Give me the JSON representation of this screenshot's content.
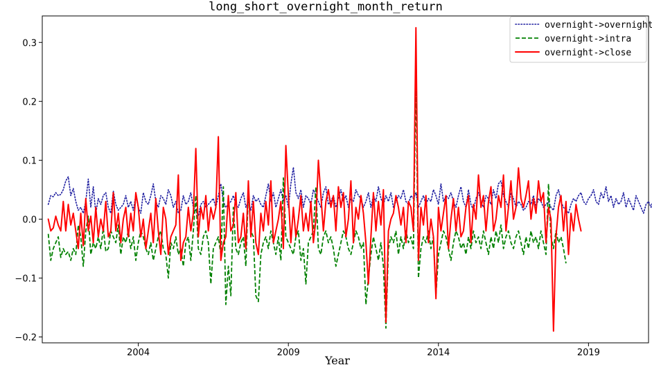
{
  "chart_data": {
    "type": "line",
    "title": "long_short_overnight_month_return",
    "xlabel": "Year",
    "ylabel": "",
    "x_ticks": [
      "2004",
      "2009",
      "2014",
      "2019"
    ],
    "x_tick_values": [
      2004,
      2009,
      2014,
      2019
    ],
    "y_ticks": [
      "−0.2",
      "−0.1",
      "0.0",
      "0.1",
      "0.2",
      "0.3"
    ],
    "y_tick_values": [
      -0.2,
      -0.1,
      0.0,
      0.1,
      0.2,
      0.3
    ],
    "xlim": [
      2000.8,
      2021.0
    ],
    "ylim": [
      -0.21,
      0.345
    ],
    "legend_position": "top-right",
    "grid": false,
    "x_start": 2001.0,
    "x_step": 0.08333333,
    "series": [
      {
        "name": "overnight->overnight",
        "color": "#1f1fa0",
        "style": "dotted",
        "values": [
          0.025,
          0.04,
          0.038,
          0.045,
          0.04,
          0.042,
          0.05,
          0.065,
          0.072,
          0.04,
          0.052,
          0.03,
          0.015,
          0.02,
          0.01,
          0.03,
          0.068,
          0.02,
          0.055,
          0.01,
          0.035,
          0.025,
          0.04,
          0.045,
          0.02,
          0.01,
          0.048,
          0.025,
          0.015,
          0.02,
          0.025,
          0.04,
          0.02,
          0.03,
          0.015,
          0.04,
          0.02,
          0.01,
          0.045,
          0.03,
          0.025,
          0.04,
          0.06,
          0.03,
          0.02,
          0.04,
          0.035,
          0.025,
          0.05,
          0.04,
          0.02,
          0.03,
          0.01,
          0.015,
          0.04,
          0.025,
          0.03,
          0.045,
          0.02,
          0.015,
          0.005,
          0.025,
          0.03,
          0.02,
          0.025,
          0.03,
          0.035,
          0.02,
          0.04,
          0.06,
          0.03,
          0.02,
          0.025,
          0.03,
          0.04,
          0.025,
          0.02,
          0.035,
          0.045,
          0.02,
          0.03,
          0.015,
          0.04,
          0.03,
          0.035,
          0.025,
          0.02,
          0.04,
          0.06,
          0.03,
          0.045,
          0.02,
          0.035,
          0.05,
          0.03,
          0.04,
          0.02,
          0.06,
          0.088,
          0.045,
          0.035,
          0.05,
          0.02,
          0.04,
          0.035,
          0.025,
          0.05,
          0.04,
          0.03,
          0.02,
          0.045,
          0.055,
          0.025,
          0.03,
          0.04,
          0.02,
          0.035,
          0.05,
          0.03,
          0.04,
          0.02,
          0.035,
          0.03,
          0.05,
          0.04,
          0.035,
          0.02,
          0.03,
          0.045,
          0.02,
          0.04,
          0.03,
          0.055,
          0.035,
          0.025,
          0.04,
          0.03,
          0.045,
          0.02,
          0.03,
          0.04,
          0.035,
          0.05,
          0.03,
          0.025,
          0.04,
          0.035,
          0.045,
          0.02,
          0.03,
          0.04,
          0.025,
          0.035,
          0.03,
          0.05,
          0.04,
          0.025,
          0.06,
          0.03,
          0.04,
          0.035,
          0.045,
          0.03,
          0.02,
          0.04,
          0.055,
          0.03,
          0.02,
          0.05,
          0.025,
          0.015,
          0.035,
          0.045,
          0.03,
          0.02,
          0.04,
          0.035,
          0.025,
          0.05,
          0.035,
          0.06,
          0.065,
          0.04,
          0.03,
          0.02,
          0.045,
          0.035,
          0.02,
          0.03,
          0.025,
          0.015,
          0.02,
          0.03,
          0.025,
          0.04,
          0.02,
          0.035,
          0.03,
          0.02,
          0.025,
          0.03,
          0.02,
          0.015,
          0.04,
          0.05,
          0.03,
          0.02,
          0.015,
          0.01,
          0.025,
          0.035,
          0.03,
          0.04,
          0.045,
          0.03,
          0.025,
          0.035,
          0.04,
          0.05,
          0.03,
          0.025,
          0.045,
          0.035,
          0.055,
          0.03,
          0.04,
          0.02,
          0.035,
          0.025,
          0.03,
          0.045,
          0.02,
          0.035,
          0.025,
          0.015,
          0.04,
          0.03,
          0.02,
          0.01,
          0.025,
          0.03,
          0.02,
          0.035,
          0.045,
          0.055
        ]
      },
      {
        "name": "overnight->intra",
        "color": "#008000",
        "style": "dashed",
        "values": [
          -0.025,
          -0.07,
          -0.05,
          -0.04,
          -0.03,
          -0.065,
          -0.05,
          -0.06,
          -0.055,
          -0.07,
          -0.05,
          -0.06,
          -0.01,
          -0.03,
          -0.08,
          -0.02,
          0.005,
          -0.06,
          -0.04,
          -0.05,
          -0.03,
          -0.05,
          -0.015,
          -0.055,
          -0.05,
          -0.02,
          -0.03,
          -0.04,
          -0.01,
          -0.06,
          -0.03,
          -0.04,
          -0.02,
          -0.05,
          -0.03,
          -0.07,
          -0.04,
          -0.02,
          -0.03,
          -0.05,
          -0.06,
          -0.04,
          -0.07,
          -0.05,
          -0.03,
          -0.02,
          -0.05,
          -0.06,
          -0.1,
          -0.04,
          -0.05,
          -0.03,
          -0.06,
          -0.05,
          -0.08,
          -0.04,
          -0.03,
          -0.07,
          -0.02,
          0.04,
          -0.05,
          -0.06,
          -0.03,
          -0.02,
          -0.04,
          -0.11,
          -0.05,
          -0.04,
          -0.03,
          -0.06,
          0.055,
          -0.145,
          -0.08,
          -0.13,
          0.02,
          -0.05,
          -0.06,
          -0.04,
          -0.03,
          -0.08,
          0.05,
          -0.02,
          -0.03,
          -0.13,
          -0.14,
          -0.06,
          -0.04,
          -0.03,
          -0.05,
          -0.02,
          -0.04,
          -0.06,
          -0.03,
          -0.07,
          0.07,
          -0.03,
          -0.04,
          -0.05,
          -0.06,
          -0.03,
          -0.02,
          -0.07,
          -0.05,
          -0.11,
          -0.04,
          -0.03,
          -0.02,
          0.055,
          -0.05,
          -0.06,
          -0.03,
          -0.02,
          -0.04,
          -0.03,
          -0.05,
          -0.08,
          -0.06,
          -0.04,
          -0.02,
          -0.03,
          -0.05,
          -0.06,
          -0.04,
          -0.02,
          -0.03,
          -0.05,
          -0.04,
          -0.145,
          -0.1,
          -0.06,
          -0.03,
          -0.05,
          -0.07,
          -0.04,
          -0.08,
          -0.185,
          -0.05,
          -0.03,
          -0.04,
          -0.02,
          -0.06,
          -0.03,
          -0.05,
          -0.02,
          -0.04,
          -0.03,
          -0.05,
          0.245,
          -0.1,
          -0.05,
          -0.03,
          -0.04,
          -0.02,
          -0.05,
          -0.03,
          -0.13,
          -0.06,
          -0.04,
          -0.02,
          -0.03,
          -0.05,
          -0.07,
          -0.04,
          -0.02,
          -0.03,
          -0.05,
          -0.04,
          -0.06,
          -0.03,
          -0.05,
          -0.02,
          -0.04,
          -0.03,
          -0.05,
          -0.02,
          -0.04,
          -0.06,
          -0.03,
          -0.05,
          -0.02,
          -0.04,
          -0.01,
          -0.05,
          -0.03,
          -0.02,
          -0.04,
          -0.05,
          -0.03,
          -0.02,
          -0.04,
          -0.06,
          -0.03,
          -0.05,
          -0.02,
          -0.04,
          -0.03,
          -0.05,
          -0.02,
          -0.04,
          -0.06,
          0.06,
          -0.03,
          -0.05,
          -0.02,
          -0.04,
          -0.03,
          -0.05,
          -0.075
        ]
      },
      {
        "name": "overnight->close",
        "color": "#ff0000",
        "style": "solid",
        "values": [
          0.0,
          -0.02,
          -0.015,
          0.005,
          -0.01,
          -0.02,
          0.03,
          -0.02,
          0.025,
          -0.01,
          0.01,
          -0.02,
          -0.05,
          0.01,
          -0.045,
          0.035,
          -0.02,
          0.005,
          -0.04,
          0.02,
          -0.03,
          0.0,
          -0.02,
          0.03,
          -0.03,
          -0.02,
          0.045,
          -0.02,
          0.01,
          -0.04,
          0.0,
          0.02,
          -0.03,
          0.01,
          -0.02,
          0.045,
          0.02,
          -0.03,
          0.0,
          -0.05,
          -0.02,
          0.01,
          -0.04,
          0.035,
          -0.02,
          -0.06,
          0.02,
          0.0,
          -0.06,
          -0.03,
          -0.02,
          -0.01,
          0.075,
          -0.07,
          -0.04,
          -0.03,
          0.02,
          -0.02,
          0.01,
          0.12,
          -0.03,
          0.02,
          0.0,
          0.04,
          -0.02,
          0.02,
          0.0,
          0.02,
          0.14,
          -0.07,
          -0.04,
          -0.03,
          0.04,
          -0.02,
          -0.01,
          0.045,
          -0.04,
          -0.03,
          0.01,
          -0.05,
          0.065,
          -0.03,
          0.03,
          -0.04,
          -0.06,
          0.01,
          -0.02,
          0.03,
          -0.01,
          0.065,
          -0.04,
          -0.02,
          0.0,
          0.03,
          -0.05,
          0.125,
          0.04,
          -0.04,
          0.02,
          -0.03,
          0.0,
          0.04,
          -0.02,
          0.01,
          -0.02,
          0.03,
          -0.04,
          0.0,
          0.1,
          0.04,
          -0.02,
          0.03,
          0.05,
          0.02,
          0.04,
          -0.02,
          0.055,
          0.02,
          0.045,
          -0.03,
          0.0,
          0.065,
          -0.04,
          0.02,
          0.0,
          0.04,
          0.01,
          -0.04,
          -0.11,
          -0.03,
          0.045,
          -0.02,
          0.03,
          -0.01,
          0.05,
          -0.175,
          -0.02,
          0.0,
          0.01,
          0.04,
          0.02,
          -0.01,
          0.02,
          -0.04,
          0.03,
          0.02,
          -0.02,
          0.325,
          -0.07,
          0.02,
          -0.01,
          0.04,
          -0.04,
          0.0,
          -0.03,
          -0.135,
          0.02,
          -0.02,
          0.01,
          0.04,
          -0.05,
          0.0,
          0.035,
          -0.02,
          0.02,
          -0.03,
          -0.02,
          0.02,
          0.04,
          -0.04,
          0.025,
          0.0,
          0.075,
          0.02,
          0.04,
          -0.02,
          0.03,
          0.055,
          -0.02,
          0.0,
          0.04,
          0.02,
          0.075,
          -0.02,
          0.02,
          0.065,
          0.0,
          0.02,
          0.087,
          0.035,
          0.02,
          0.04,
          0.065,
          0.0,
          0.035,
          0.01,
          0.065,
          0.03,
          0.045,
          -0.04,
          0.02,
          0.0,
          -0.19,
          -0.03,
          0.02,
          0.04,
          -0.02,
          0.03,
          -0.06,
          0.01,
          -0.02,
          0.025,
          0.0,
          -0.02
        ]
      }
    ]
  }
}
